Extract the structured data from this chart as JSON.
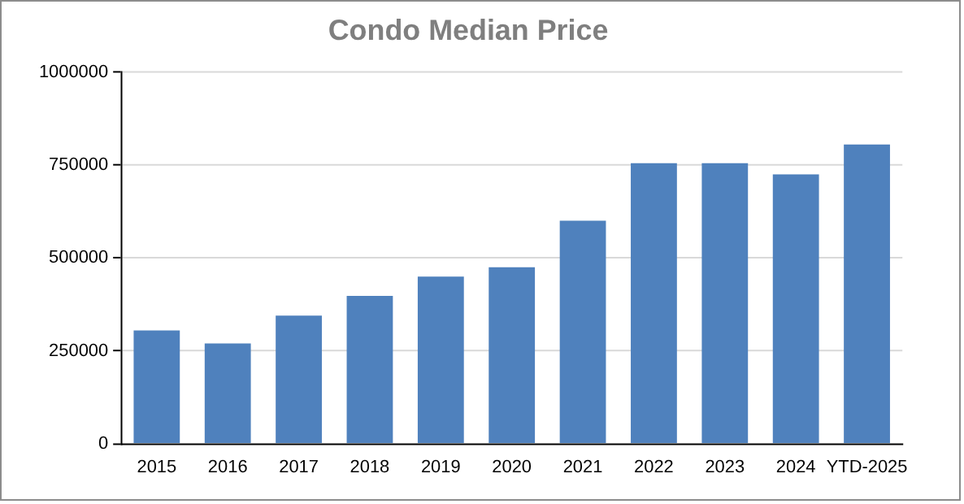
{
  "chart_data": {
    "type": "bar",
    "title": "Condo Median Price",
    "categories": [
      "2015",
      "2016",
      "2017",
      "2018",
      "2019",
      "2020",
      "2021",
      "2022",
      "2023",
      "2024",
      "YTD-2025"
    ],
    "values": [
      305000,
      270000,
      345000,
      398000,
      450000,
      475000,
      600000,
      755000,
      755000,
      725000,
      805000
    ],
    "color": "#4f81bd",
    "ylim": [
      0,
      1000000
    ],
    "yticks": [
      0,
      250000,
      500000,
      750000,
      1000000
    ],
    "grid": "y",
    "legend": false
  }
}
